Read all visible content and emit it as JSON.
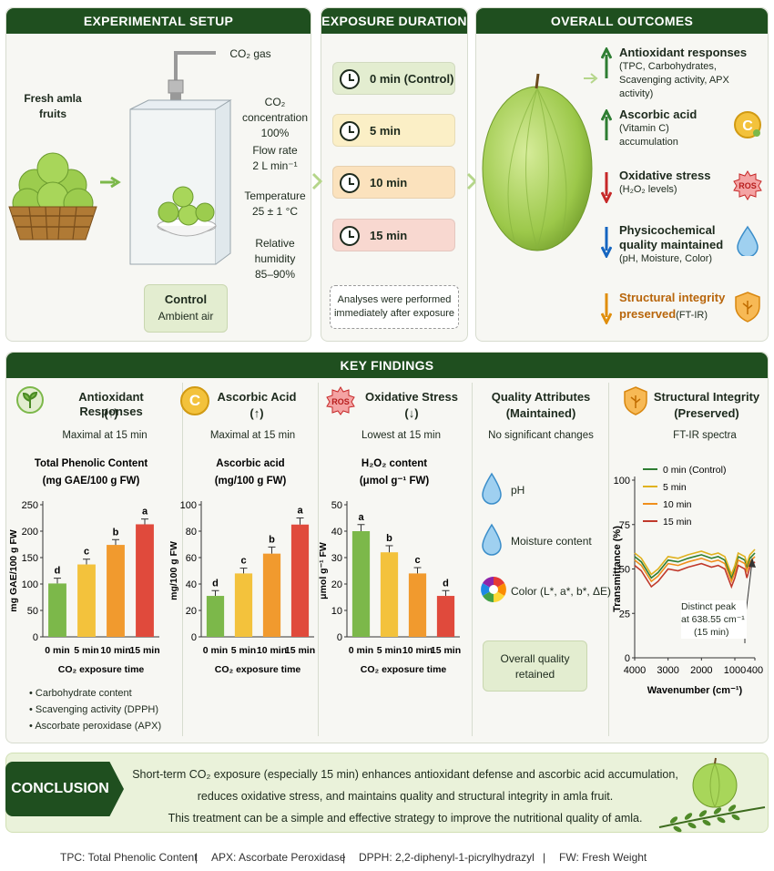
{
  "setup": {
    "title": "EXPERIMENTAL SETUP",
    "fruit_label_1": "Fresh amla",
    "fruit_label_2": "fruits",
    "gas_label": "CO₂ gas",
    "conc_label": "CO₂ concentration",
    "conc_value": "100%",
    "flow_label": "Flow rate",
    "flow_value": "2 L min⁻¹",
    "temp_label": "Temperature",
    "temp_value": "25 ± 1 °C",
    "rh_label": "Relative humidity",
    "rh_value": "85–90%",
    "control_title": "Control",
    "control_sub": "Ambient air"
  },
  "duration": {
    "title": "EXPOSURE DURATION",
    "items": [
      {
        "label": "0 min (Control)",
        "color": "#e3edd0"
      },
      {
        "label": "5 min",
        "color": "#fbefc6"
      },
      {
        "label": "10 min",
        "color": "#fbe2bd"
      },
      {
        "label": "15 min",
        "color": "#f8d8d0"
      }
    ],
    "note_1": "Analyses were performed",
    "note_2": "immediately after exposure"
  },
  "outcomes": {
    "title": "OVERALL OUTCOMES",
    "items": [
      {
        "title": "Antioxidant responses",
        "sub": "(TPC, Carbohydrates, Scavenging activity, APX activity)",
        "dir": "up",
        "color": "#2e7d32",
        "icon": "up-arrow-icon"
      },
      {
        "title": "Ascorbic acid",
        "sub": "(Vitamin C) accumulation",
        "dir": "up",
        "color": "#2e7d32",
        "icon": "vitamin-c-icon"
      },
      {
        "title": "Oxidative stress",
        "sub": "(H₂O₂ levels)",
        "dir": "down",
        "color": "#c62828",
        "icon": "ros-icon"
      },
      {
        "title": "Physicochemical quality maintained",
        "sub": "(pH, Moisture, Color)",
        "dir": "down",
        "color": "#1565c0",
        "icon": "droplet-icon"
      },
      {
        "title": "Structural integrity preserved",
        "sub": "(FT-IR)",
        "dir": "down",
        "color": "#e08e0b",
        "icon": "shield-icon"
      }
    ]
  },
  "findings": {
    "title": "KEY FINDINGS",
    "antioxidant": {
      "title": "Antioxidant Responses",
      "arrow": "(↑)",
      "sub": "Maximal at 15 min",
      "bullets": [
        "Carbohydrate content",
        "Scavenging activity (DPPH)",
        "Ascorbate peroxidase (APX)"
      ]
    },
    "ascorbic": {
      "title": "Ascorbic Acid",
      "arrow": "(↑)",
      "sub": "Maximal at 15 min"
    },
    "oxidative": {
      "title": "Oxidative Stress",
      "arrow": "(↓)",
      "sub": "Lowest at 15 min"
    },
    "quality": {
      "title": "Quality Attributes",
      "title2": "(Maintained)",
      "sub": "No significant changes",
      "items": [
        "pH",
        "Moisture content",
        "Color (L*, a*, b*, ΔE)"
      ],
      "overall_1": "Overall quality",
      "overall_2": "retained"
    },
    "structural": {
      "title": "Structural Integrity",
      "title2": "(Preserved)",
      "sub": "FT-IR spectra",
      "peak_1": "Distinct peak",
      "peak_2": "at 638.55 cm⁻¹",
      "peak_3": "(15 min)"
    }
  },
  "chart_data": [
    {
      "type": "bar",
      "title": "Total Phenolic Content",
      "title2": "(mg GAE/100 g FW)",
      "ylabel": "mg GAE/100 g FW",
      "xlabel": "CO₂ exposure time",
      "categories": [
        "0 min",
        "5 min",
        "10 min",
        "15 min"
      ],
      "values": [
        101,
        137,
        174,
        213
      ],
      "errors": [
        10,
        10,
        10,
        10
      ],
      "letters": [
        "d",
        "c",
        "b",
        "a"
      ],
      "ylim": [
        0,
        250
      ],
      "yticks": [
        0,
        50,
        100,
        150,
        200,
        250
      ],
      "colors": [
        "#7cb84a",
        "#f3c23c",
        "#f19a2e",
        "#e04a3c"
      ]
    },
    {
      "type": "bar",
      "title": "Ascorbic acid",
      "title2": "(mg/100 g FW)",
      "ylabel": "mg/100 g FW",
      "xlabel": "CO₂ exposure time",
      "categories": [
        "0 min",
        "5 min",
        "10 min",
        "15 min"
      ],
      "values": [
        31,
        48,
        63,
        85
      ],
      "errors": [
        4,
        4,
        5,
        5
      ],
      "letters": [
        "d",
        "c",
        "b",
        "a"
      ],
      "ylim": [
        0,
        100
      ],
      "yticks": [
        0,
        20,
        40,
        60,
        80,
        100
      ],
      "colors": [
        "#7cb84a",
        "#f3c23c",
        "#f19a2e",
        "#e04a3c"
      ]
    },
    {
      "type": "bar",
      "title": "H₂O₂ content",
      "title2": "(μmol g⁻¹ FW)",
      "ylabel": "μmol g⁻¹ FW",
      "xlabel": "CO₂ exposure time",
      "categories": [
        "0 min",
        "5 min",
        "10 min",
        "15 min"
      ],
      "values": [
        40,
        32,
        24,
        15.5
      ],
      "errors": [
        2.5,
        2.5,
        2.2,
        2
      ],
      "letters": [
        "a",
        "b",
        "c",
        "d"
      ],
      "ylim": [
        0,
        50
      ],
      "yticks": [
        0,
        10,
        20,
        30,
        40,
        50
      ],
      "colors": [
        "#7cb84a",
        "#f3c23c",
        "#f19a2e",
        "#e04a3c"
      ]
    },
    {
      "type": "line",
      "title": "FT-IR spectra",
      "xlabel": "Wavenumber (cm⁻¹)",
      "ylabel": "Transmittance (%)",
      "xlim": [
        4000,
        400
      ],
      "xticks": [
        4000,
        3000,
        2000,
        1000,
        400
      ],
      "ylim": [
        0,
        100
      ],
      "yticks": [
        0,
        25,
        50,
        75,
        100
      ],
      "x": [
        4000,
        3800,
        3500,
        3300,
        3000,
        2700,
        2400,
        2000,
        1700,
        1500,
        1300,
        1100,
        1000,
        900,
        700,
        640,
        550,
        400
      ],
      "series": [
        {
          "name": "0 min (Control)",
          "color": "#2e7d32",
          "values": [
            57,
            54,
            45,
            48,
            55,
            54,
            56,
            58,
            56,
            57,
            55,
            45,
            50,
            57,
            55,
            51,
            56,
            59
          ]
        },
        {
          "name": "5 min",
          "color": "#e0b21f",
          "values": [
            59,
            56,
            47,
            50,
            57,
            56,
            58,
            60,
            58,
            59,
            57,
            47,
            52,
            59,
            57,
            53,
            58,
            61
          ]
        },
        {
          "name": "10 min",
          "color": "#ef8f1c",
          "values": [
            55,
            52,
            43,
            46,
            53,
            52,
            54,
            56,
            54,
            55,
            53,
            43,
            48,
            55,
            53,
            49,
            54,
            57
          ]
        },
        {
          "name": "15 min",
          "color": "#c0392b",
          "values": [
            52,
            49,
            40,
            43,
            50,
            49,
            51,
            53,
            51,
            52,
            50,
            40,
            45,
            52,
            50,
            45,
            51,
            54
          ]
        }
      ]
    }
  ],
  "conclusion": {
    "label": "CONCLUSION",
    "line1": "Short-term CO₂ exposure (especially 15 min) enhances antioxidant defense and ascorbic acid accumulation,",
    "line2": "reduces oxidative stress, and maintains quality and structural integrity in amla fruit.",
    "line3": "This treatment can be a simple and effective strategy to improve the nutritional quality of amla."
  },
  "footer": [
    "TPC: Total Phenolic Content",
    "APX: Ascorbate Peroxidase",
    "DPPH: 2,2-diphenyl-1-picrylhydrazyl",
    "FW: Fresh Weight"
  ]
}
